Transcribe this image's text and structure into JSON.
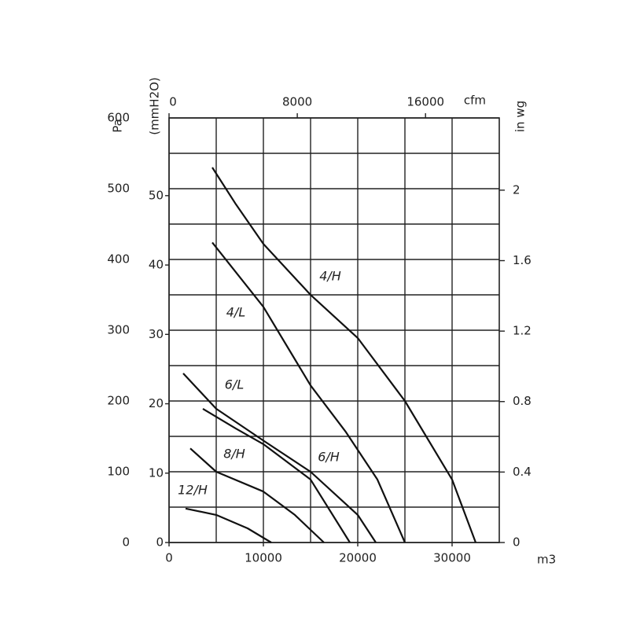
{
  "chart_data": {
    "type": "line",
    "x_label": "m3",
    "x2_label": "cfm",
    "y_label": "Pa",
    "y2_label": "(mmH2O)",
    "y3_label": "in wg",
    "xlim": [
      0,
      35000
    ],
    "xticks": [
      0,
      10000,
      20000,
      30000
    ],
    "minor_xticks": [
      5000,
      15000,
      25000
    ],
    "x2lim": [
      0,
      20600
    ],
    "x2ticks": [
      0,
      8000,
      16000
    ],
    "ylim": [
      0,
      600
    ],
    "yticks": [
      0,
      100,
      200,
      300,
      400,
      500,
      600
    ],
    "minor_yticks": [
      50,
      150,
      250,
      350,
      450,
      550
    ],
    "y2lim": [
      0,
      61.2
    ],
    "y2ticks": [
      0,
      10,
      20,
      30,
      40,
      50
    ],
    "y3lim": [
      0,
      2.41
    ],
    "y3ticks": [
      0,
      0.4,
      0.8,
      1.2,
      1.6,
      2
    ],
    "grid": true,
    "color": "#111",
    "series": [
      {
        "name": "4/H",
        "x": [
          4583,
          7083,
          10000,
          15000,
          20000,
          25000,
          30000,
          32500
        ],
        "values": [
          530,
          478,
          422,
          350,
          289,
          200,
          89,
          0
        ]
      },
      {
        "name": "4/L",
        "x": [
          4583,
          10000,
          15000,
          18750,
          22083,
          25000
        ],
        "values": [
          424,
          333,
          222,
          156,
          89,
          0
        ]
      },
      {
        "name": "6/L",
        "x": [
          1500,
          5000,
          10000,
          15000,
          20000,
          21917
        ],
        "values": [
          239,
          189,
          144,
          100,
          39,
          0
        ]
      },
      {
        "name": "8/H",
        "x": [
          2250,
          5000,
          10000,
          13333,
          16417
        ],
        "values": [
          133,
          100,
          72,
          39,
          0
        ]
      },
      {
        "name": "6/H",
        "x": [
          3583,
          7083,
          10000,
          15000,
          19167
        ],
        "values": [
          189,
          161,
          139,
          89,
          0
        ]
      },
      {
        "name": "12/H",
        "x": [
          1750,
          5000,
          8333,
          10833
        ],
        "values": [
          48,
          39,
          20,
          0
        ]
      }
    ]
  }
}
